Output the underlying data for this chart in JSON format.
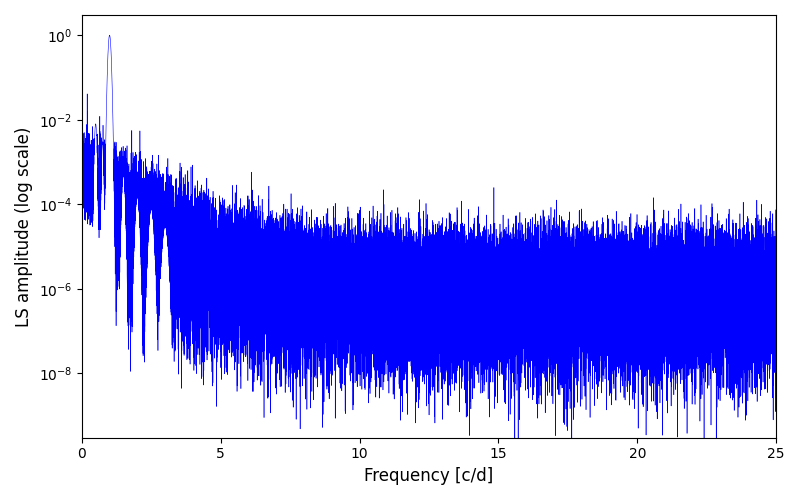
{
  "title": "",
  "xlabel": "Frequency [c/d]",
  "ylabel": "LS amplitude (log scale)",
  "line_color": "#0000ff",
  "xlim": [
    0,
    25
  ],
  "ylim_bottom": 3e-10,
  "ylim_top": 3.0,
  "freq_max": 25.0,
  "n_points": 50000,
  "peak_freq": 1.0,
  "peak_amplitude": 1.0,
  "background_color": "#ffffff",
  "figsize": [
    8.0,
    5.0
  ],
  "dpi": 100,
  "seed": 12345
}
